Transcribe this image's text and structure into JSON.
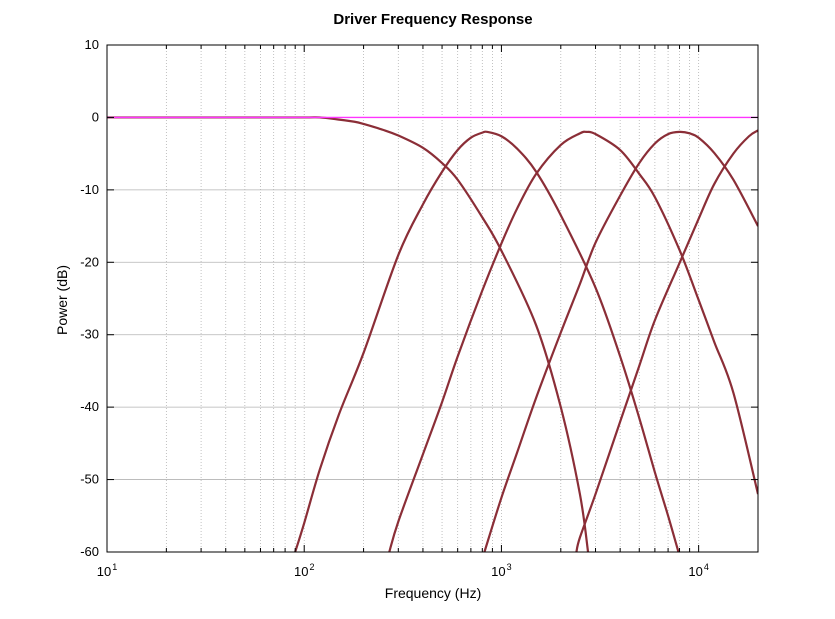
{
  "chart_data": {
    "type": "line",
    "title": "Driver Frequency Response",
    "xlabel": "Frequency (Hz)",
    "ylabel": "Power (dB)",
    "x_scale": "log",
    "xlim": [
      10,
      20000
    ],
    "ylim": [
      -60,
      10
    ],
    "x_ticks": [
      {
        "value": 10,
        "base": "10",
        "exp": "1"
      },
      {
        "value": 100,
        "base": "10",
        "exp": "2"
      },
      {
        "value": 1000,
        "base": "10",
        "exp": "3"
      },
      {
        "value": 10000,
        "base": "10",
        "exp": "4"
      }
    ],
    "y_ticks": [
      {
        "value": 10,
        "label": "10"
      },
      {
        "value": 0,
        "label": "0"
      },
      {
        "value": -10,
        "label": "-10"
      },
      {
        "value": -20,
        "label": "-20"
      },
      {
        "value": -30,
        "label": "-30"
      },
      {
        "value": -40,
        "label": "-40"
      },
      {
        "value": -50,
        "label": "-50"
      },
      {
        "value": -60,
        "label": "-60"
      }
    ],
    "grid": true,
    "grid_x_minor": true,
    "legend": "none",
    "colors": {
      "driver": "#8b2e37",
      "sum": "#ff33ff",
      "grid": "#b3b3b3"
    },
    "series": [
      {
        "color": "#8b2e37",
        "x": [
          10,
          50,
          100,
          120,
          150,
          180,
          200,
          250,
          300,
          400,
          500,
          600,
          800,
          1000,
          1500,
          2000,
          2500,
          2750
        ],
        "y": [
          0,
          0,
          0,
          0,
          -0.3,
          -0.6,
          -0.9,
          -1.7,
          -2.5,
          -4.2,
          -6.3,
          -8.6,
          -13.8,
          -18.4,
          -28.7,
          -40.0,
          -52.0,
          -60.0
        ]
      },
      {
        "color": "#8b2e37",
        "x": [
          90,
          100,
          120,
          150,
          200,
          300,
          400,
          500,
          600,
          700,
          800,
          850,
          1000,
          1200,
          1500,
          2000,
          3000,
          4000,
          5000,
          6000,
          7000,
          7900
        ],
        "y": [
          -60,
          -56,
          -48.6,
          -41.0,
          -32.5,
          -19.0,
          -12.0,
          -7.5,
          -4.5,
          -2.8,
          -2.1,
          -2.0,
          -2.6,
          -4.3,
          -7.5,
          -13.5,
          -23.5,
          -33.0,
          -41.5,
          -49.0,
          -55.0,
          -60.0
        ]
      },
      {
        "color": "#8b2e37",
        "x": [
          270,
          300,
          400,
          500,
          600,
          800,
          1000,
          1200,
          1500,
          2000,
          2500,
          2700,
          3000,
          4000,
          5000,
          6000,
          8000,
          10000,
          12000,
          15000,
          20000
        ],
        "y": [
          -60,
          -55.8,
          -46.5,
          -39.3,
          -33.0,
          -23.9,
          -17.4,
          -12.6,
          -7.8,
          -3.8,
          -2.2,
          -2.0,
          -2.3,
          -4.5,
          -7.8,
          -11.0,
          -18.3,
          -25.2,
          -31.0,
          -38.0,
          -52.0
        ]
      },
      {
        "color": "#8b2e37",
        "x": [
          820,
          1000,
          1200,
          1500,
          2000,
          2500,
          3000,
          4000,
          5000,
          6000,
          7000,
          8000,
          9000,
          10000,
          12000,
          15000,
          20000
        ],
        "y": [
          -60,
          -52.5,
          -46.3,
          -38.7,
          -29.7,
          -23.0,
          -17.3,
          -10.8,
          -6.3,
          -3.6,
          -2.3,
          -2.0,
          -2.2,
          -2.8,
          -4.9,
          -8.6,
          -15.0
        ]
      },
      {
        "color": "#8b2e37",
        "x": [
          2400,
          2500,
          3000,
          4000,
          5000,
          6000,
          8000,
          10000,
          12000,
          15000,
          18000,
          20000
        ],
        "y": [
          -60,
          -58.0,
          -52.0,
          -42.0,
          -34.3,
          -28.0,
          -20.1,
          -14.0,
          -9.2,
          -5.0,
          -2.6,
          -1.8
        ]
      },
      {
        "color": "#ff33ff",
        "x": [
          10,
          20000
        ],
        "y": [
          0,
          0
        ]
      }
    ]
  }
}
